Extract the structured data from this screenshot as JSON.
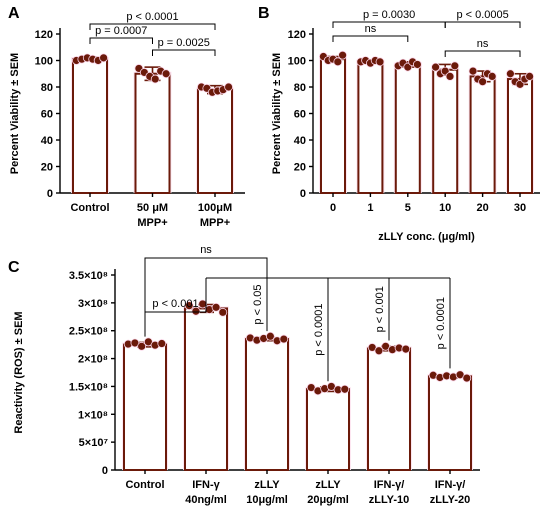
{
  "chart_data": [
    {
      "type": "bar",
      "panel": "A",
      "categories": [
        "Control",
        "50 μM\nMPP+",
        "100μM\nMPP+"
      ],
      "values": [
        101,
        90,
        78
      ],
      "errors": [
        1.5,
        5,
        3
      ],
      "points": [
        [
          100,
          101,
          102,
          101,
          100,
          102
        ],
        [
          94,
          91,
          88,
          86,
          92,
          90
        ],
        [
          80,
          79,
          76,
          77,
          78,
          80
        ]
      ],
      "ylabel": "Percent Viability ± SEM",
      "xlabel": "",
      "ylim": [
        0,
        120
      ],
      "yticks": [
        0,
        20,
        40,
        60,
        80,
        100,
        120
      ],
      "annotations": [
        {
          "from": 0,
          "to": 1,
          "text": "p = 0.0007"
        },
        {
          "from": 1,
          "to": 2,
          "text": "p = 0.0025"
        },
        {
          "from": 0,
          "to": 2,
          "text": "p < 0.0001"
        }
      ],
      "bar_color": "#6b1a0a",
      "dot_color": "#6b1a0a"
    },
    {
      "type": "bar",
      "panel": "B",
      "categories": [
        "0",
        "1",
        "5",
        "10",
        "20",
        "30"
      ],
      "values": [
        101,
        99,
        97,
        93,
        88,
        86
      ],
      "errors": [
        2,
        1,
        2,
        4,
        4,
        4
      ],
      "points": [
        [
          103,
          100,
          101,
          99,
          104
        ],
        [
          99,
          100,
          98,
          100,
          99
        ],
        [
          96,
          98,
          95,
          99,
          97
        ],
        [
          95,
          90,
          92,
          88,
          96
        ],
        [
          92,
          86,
          84,
          90,
          88
        ],
        [
          90,
          84,
          82,
          86,
          88
        ]
      ],
      "ylabel": "Percent Viability ± SEM",
      "xlabel": "zLLY conc. (μg/ml)",
      "ylim": [
        0,
        120
      ],
      "yticks": [
        0,
        20,
        40,
        60,
        80,
        100,
        120
      ],
      "annotations": [
        {
          "from": 0,
          "to": 2,
          "text": "ns"
        },
        {
          "from": 3,
          "to": 5,
          "text": "ns"
        },
        {
          "from": 0,
          "to": 3,
          "text": "p = 0.0030"
        },
        {
          "from": 3,
          "to": 5,
          "text": "p < 0.0005"
        }
      ],
      "bar_color": "#6b1a0a",
      "dot_color": "#6b1a0a"
    },
    {
      "type": "bar",
      "panel": "C",
      "categories": [
        "Control",
        "IFN-γ\n40ng/ml",
        "zLLY\n10μg/ml",
        "zLLY\n20μg/ml",
        "IFN-γ/\nzLLY-10",
        "IFN-γ/\nzLLY-20"
      ],
      "values": [
        225000000,
        290000000,
        235000000,
        145000000,
        218000000,
        168000000
      ],
      "errors": [
        4000000,
        7000000,
        3000000,
        4000000,
        4000000,
        3000000
      ],
      "points": [
        [
          226000000,
          228000000,
          222000000,
          230000000,
          224000000,
          227000000
        ],
        [
          295000000,
          285000000,
          298000000,
          288000000,
          292000000,
          283000000
        ],
        [
          237000000,
          233000000,
          236000000,
          240000000,
          232000000,
          235000000
        ],
        [
          148000000,
          142000000,
          146000000,
          150000000,
          144000000,
          145000000
        ],
        [
          220000000,
          214000000,
          222000000,
          216000000,
          219000000,
          217000000
        ],
        [
          170000000,
          166000000,
          169000000,
          167000000,
          171000000,
          165000000
        ]
      ],
      "ylabel": "Reactivity (ROS) ± SEM",
      "xlabel": "",
      "ylim": [
        0,
        350000000
      ],
      "yticks": [
        0,
        50000000,
        100000000,
        150000000,
        200000000,
        250000000,
        300000000,
        350000000
      ],
      "ytick_labels": [
        "0",
        "5×10⁷",
        "1×10⁸",
        "1.5×10⁸",
        "2×10⁸",
        "2.5×10⁸",
        "3×10⁸",
        "3.5×10⁸"
      ],
      "annotations": [
        {
          "from": 0,
          "to": 2,
          "text": "ns"
        },
        {
          "from": 0,
          "to": 1,
          "text": "p < 0.001"
        },
        {
          "from": 1,
          "to": 2,
          "text": "p < 0.05"
        },
        {
          "from": 1,
          "to": 3,
          "text": "p < 0.0001"
        },
        {
          "from": 1,
          "to": 4,
          "text": "p < 0.001"
        },
        {
          "from": 1,
          "to": 5,
          "text": "p < 0.0001"
        }
      ],
      "bar_color": "#6b1a0a",
      "dot_color": "#6b1a0a"
    }
  ]
}
